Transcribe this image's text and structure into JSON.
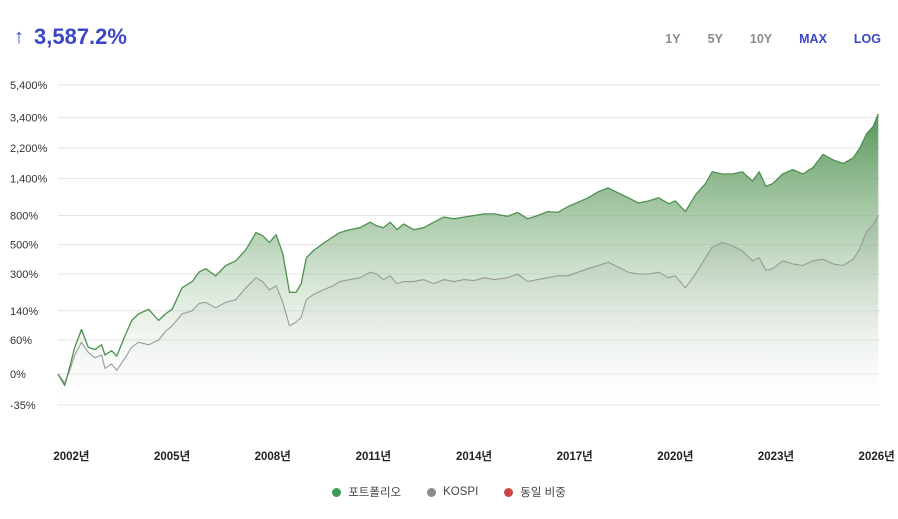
{
  "header": {
    "arrow": "↑",
    "total_return": "3,587.2%",
    "ranges": [
      {
        "label": "1Y",
        "active": false
      },
      {
        "label": "5Y",
        "active": false
      },
      {
        "label": "10Y",
        "active": false
      },
      {
        "label": "MAX",
        "active": true
      },
      {
        "label": "LOG",
        "active": true
      }
    ]
  },
  "colors": {
    "portfolio": "#4e9150",
    "kospi": "#9a9a9a",
    "equal_weight": "#d04a4a",
    "accent": "#3b47c4"
  },
  "chart_data": {
    "type": "area",
    "yscale": "log",
    "ylabel": "",
    "xlabel": "",
    "y_ticks": [
      5400,
      3400,
      2200,
      1400,
      800,
      500,
      300,
      140,
      60,
      0,
      -35
    ],
    "y_tick_labels": [
      "5,400%",
      "3,400%",
      "2,200%",
      "1,400%",
      "800%",
      "500%",
      "300%",
      "140%",
      "60%",
      "0%",
      "-35%"
    ],
    "x_ticks": [
      2002,
      2005,
      2008,
      2011,
      2014,
      2017,
      2020,
      2023,
      2026
    ],
    "x_tick_labels": [
      "2002년",
      "2005년",
      "2008년",
      "2011년",
      "2014년",
      "2017년",
      "2020년",
      "2023년",
      "2026년"
    ],
    "xlim": [
      2001.6,
      2026.1
    ],
    "ylim": [
      -45,
      5400
    ],
    "legend_placement": "bottom-center",
    "series": [
      {
        "name": "포트폴리오",
        "x": [
          2001.6,
          2001.8,
          2001.95,
          2002.1,
          2002.3,
          2002.5,
          2002.7,
          2002.9,
          2003.0,
          2003.2,
          2003.35,
          2003.6,
          2003.8,
          2004.0,
          2004.3,
          2004.6,
          2004.8,
          2005.0,
          2005.3,
          2005.6,
          2005.8,
          2006.0,
          2006.3,
          2006.6,
          2006.9,
          2007.2,
          2007.5,
          2007.7,
          2007.9,
          2008.1,
          2008.3,
          2008.5,
          2008.7,
          2008.85,
          2009.0,
          2009.2,
          2009.5,
          2009.8,
          2010.0,
          2010.3,
          2010.6,
          2010.9,
          2011.1,
          2011.3,
          2011.5,
          2011.7,
          2011.9,
          2012.2,
          2012.5,
          2012.8,
          2013.1,
          2013.4,
          2013.7,
          2014.0,
          2014.3,
          2014.6,
          2015.0,
          2015.3,
          2015.6,
          2015.9,
          2016.2,
          2016.5,
          2016.8,
          2017.1,
          2017.4,
          2017.7,
          2018.0,
          2018.3,
          2018.6,
          2018.9,
          2019.2,
          2019.5,
          2019.8,
          2020.0,
          2020.3,
          2020.6,
          2020.9,
          2021.1,
          2021.4,
          2021.7,
          2022.0,
          2022.3,
          2022.5,
          2022.7,
          2022.9,
          2023.2,
          2023.5,
          2023.8,
          2024.1,
          2024.4,
          2024.7,
          2025.0,
          2025.3,
          2025.5,
          2025.7,
          2025.9,
          2026.05
        ],
        "y": [
          0,
          -15,
          10,
          45,
          85,
          45,
          40,
          50,
          30,
          38,
          28,
          70,
          110,
          130,
          145,
          110,
          130,
          145,
          230,
          260,
          310,
          330,
          290,
          350,
          380,
          460,
          610,
          580,
          520,
          590,
          430,
          210,
          210,
          250,
          400,
          450,
          510,
          570,
          610,
          640,
          660,
          720,
          680,
          660,
          720,
          640,
          700,
          640,
          660,
          720,
          780,
          760,
          780,
          800,
          820,
          820,
          790,
          840,
          760,
          800,
          850,
          840,
          920,
          980,
          1050,
          1150,
          1220,
          1130,
          1050,
          970,
          1000,
          1050,
          960,
          1000,
          850,
          1100,
          1300,
          1550,
          1500,
          1500,
          1550,
          1350,
          1550,
          1250,
          1300,
          1500,
          1600,
          1500,
          1650,
          2000,
          1850,
          1750,
          1900,
          2200,
          2700,
          3000,
          3587.2
        ]
      },
      {
        "name": "KOSPI",
        "x": [
          2001.6,
          2001.8,
          2001.95,
          2002.1,
          2002.3,
          2002.5,
          2002.7,
          2002.9,
          2003.0,
          2003.2,
          2003.35,
          2003.6,
          2003.8,
          2004.0,
          2004.3,
          2004.6,
          2004.8,
          2005.0,
          2005.3,
          2005.6,
          2005.8,
          2006.0,
          2006.3,
          2006.6,
          2006.9,
          2007.2,
          2007.5,
          2007.7,
          2007.9,
          2008.1,
          2008.3,
          2008.5,
          2008.7,
          2008.85,
          2009.0,
          2009.2,
          2009.5,
          2009.8,
          2010.0,
          2010.3,
          2010.6,
          2010.9,
          2011.1,
          2011.3,
          2011.5,
          2011.7,
          2011.9,
          2012.2,
          2012.5,
          2012.8,
          2013.1,
          2013.4,
          2013.7,
          2014.0,
          2014.3,
          2014.6,
          2015.0,
          2015.3,
          2015.6,
          2015.9,
          2016.2,
          2016.5,
          2016.8,
          2017.1,
          2017.4,
          2017.7,
          2018.0,
          2018.3,
          2018.6,
          2018.9,
          2019.2,
          2019.5,
          2019.8,
          2020.0,
          2020.3,
          2020.6,
          2020.9,
          2021.1,
          2021.4,
          2021.7,
          2022.0,
          2022.3,
          2022.5,
          2022.7,
          2022.9,
          2023.2,
          2023.5,
          2023.8,
          2024.1,
          2024.4,
          2024.7,
          2025.0,
          2025.3,
          2025.5,
          2025.7,
          2025.9,
          2026.05
        ],
        "y": [
          0,
          -12,
          5,
          30,
          55,
          35,
          25,
          30,
          8,
          15,
          5,
          25,
          45,
          55,
          50,
          60,
          80,
          95,
          130,
          140,
          165,
          170,
          150,
          170,
          180,
          230,
          280,
          260,
          220,
          240,
          170,
          95,
          105,
          120,
          180,
          200,
          220,
          240,
          260,
          270,
          280,
          310,
          300,
          270,
          290,
          250,
          260,
          260,
          270,
          250,
          270,
          260,
          270,
          265,
          280,
          270,
          280,
          300,
          260,
          270,
          280,
          290,
          290,
          310,
          330,
          350,
          370,
          340,
          310,
          300,
          300,
          310,
          280,
          290,
          230,
          300,
          400,
          480,
          520,
          490,
          450,
          380,
          400,
          320,
          330,
          380,
          360,
          350,
          380,
          390,
          360,
          350,
          390,
          470,
          620,
          700,
          800
        ]
      },
      {
        "name": "동일 비중",
        "x": [],
        "y": []
      }
    ]
  }
}
